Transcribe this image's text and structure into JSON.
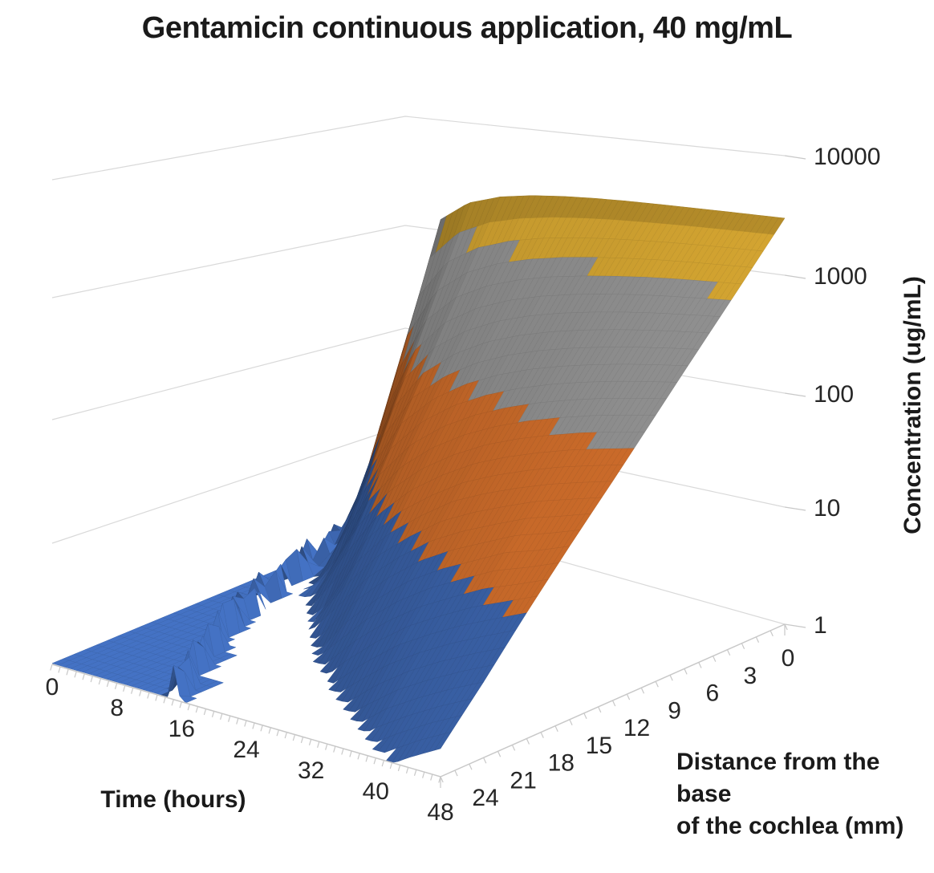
{
  "chart_data": {
    "type": "surface",
    "title": "Gentamicin continuous application, 40 mg/mL",
    "x_axis": {
      "title": "Time (hours)",
      "tick_labels": [
        "0",
        "8",
        "16",
        "24",
        "32",
        "40",
        "48"
      ],
      "tick_values": [
        0,
        8,
        16,
        24,
        32,
        40,
        48
      ],
      "minor_tick_step_hours": 1,
      "range": [
        0,
        48
      ]
    },
    "y_axis": {
      "title_lines": [
        "Distance from the base",
        "of the cochlea (mm)"
      ],
      "tick_labels": [
        "24",
        "21",
        "18",
        "15",
        "12",
        "9",
        "6",
        "3",
        "0"
      ],
      "tick_values": [
        24,
        21,
        18,
        15,
        12,
        9,
        6,
        3,
        0
      ],
      "minor_tick_step_mm": 1,
      "range": [
        0,
        24
      ]
    },
    "z_axis": {
      "title": "Concentration (ug/mL)",
      "scale": "log",
      "tick_labels": [
        "1",
        "10",
        "100",
        "1000",
        "10000"
      ],
      "tick_values": [
        1,
        10,
        100,
        1000,
        10000
      ],
      "range": [
        1,
        10000
      ]
    },
    "colors": {
      "bands": [
        "#4472C4",
        "#ED7D31",
        "#A6A6A6",
        "#F2BC38"
      ],
      "band_ranges_ug_ml": [
        [
          1,
          10
        ],
        [
          10,
          100
        ],
        [
          100,
          1000
        ],
        [
          1000,
          10000
        ]
      ],
      "gridline": "#D9D9D9",
      "axis_line": "#C8C8C8",
      "tick_label": "#262626",
      "background": "#FFFFFF"
    },
    "surface": {
      "time_hours": [
        0,
        4,
        8,
        12,
        16,
        20,
        24,
        28,
        32,
        36,
        40,
        44,
        48
      ],
      "distance_mm": [
        0,
        3,
        6,
        9,
        12,
        15,
        18,
        21,
        24
      ],
      "baseline_ug_ml": 1.02,
      "front_ring": {
        "onset_coef": 38.7,
        "period": 2.1,
        "decay": 2.5,
        "amplitude": 1.5
      },
      "concentration_ug_ml": [
        [
          1,
          1180,
          1900,
          2330,
          2590,
          2750,
          2850,
          2910,
          2940,
          2960,
          2980,
          2990,
          3000
        ],
        [
          1,
          46,
          190,
          358,
          512,
          644,
          758,
          853,
          936,
          1010,
          1070,
          1120,
          1170
        ],
        [
          1,
          1.8,
          19,
          55,
          100,
          151,
          201,
          250,
          296,
          340,
          382,
          421,
          459
        ],
        [
          1,
          0.7,
          2.0,
          8.4,
          20,
          35,
          53,
          73,
          94,
          115,
          137,
          158,
          179
        ],
        [
          1,
          1,
          0.6,
          1.3,
          3.9,
          8.3,
          14,
          22,
          30,
          39,
          49,
          59,
          70
        ],
        [
          1,
          1,
          1,
          0.5,
          0.8,
          1.9,
          3.7,
          6.3,
          9.4,
          13,
          18,
          22,
          28
        ],
        [
          1,
          1,
          1,
          1,
          0.4,
          0.5,
          1.0,
          1.8,
          3.0,
          4.4,
          6.2,
          8.3,
          11
        ],
        [
          1,
          1,
          1,
          1,
          1,
          0.5,
          0.3,
          0.5,
          0.9,
          1.5,
          2.2,
          3.1,
          4.2
        ],
        [
          1,
          1,
          1,
          1,
          1,
          1,
          0.7,
          0.4,
          0.3,
          0.5,
          0.8,
          1.2,
          1.7
        ]
      ]
    }
  }
}
